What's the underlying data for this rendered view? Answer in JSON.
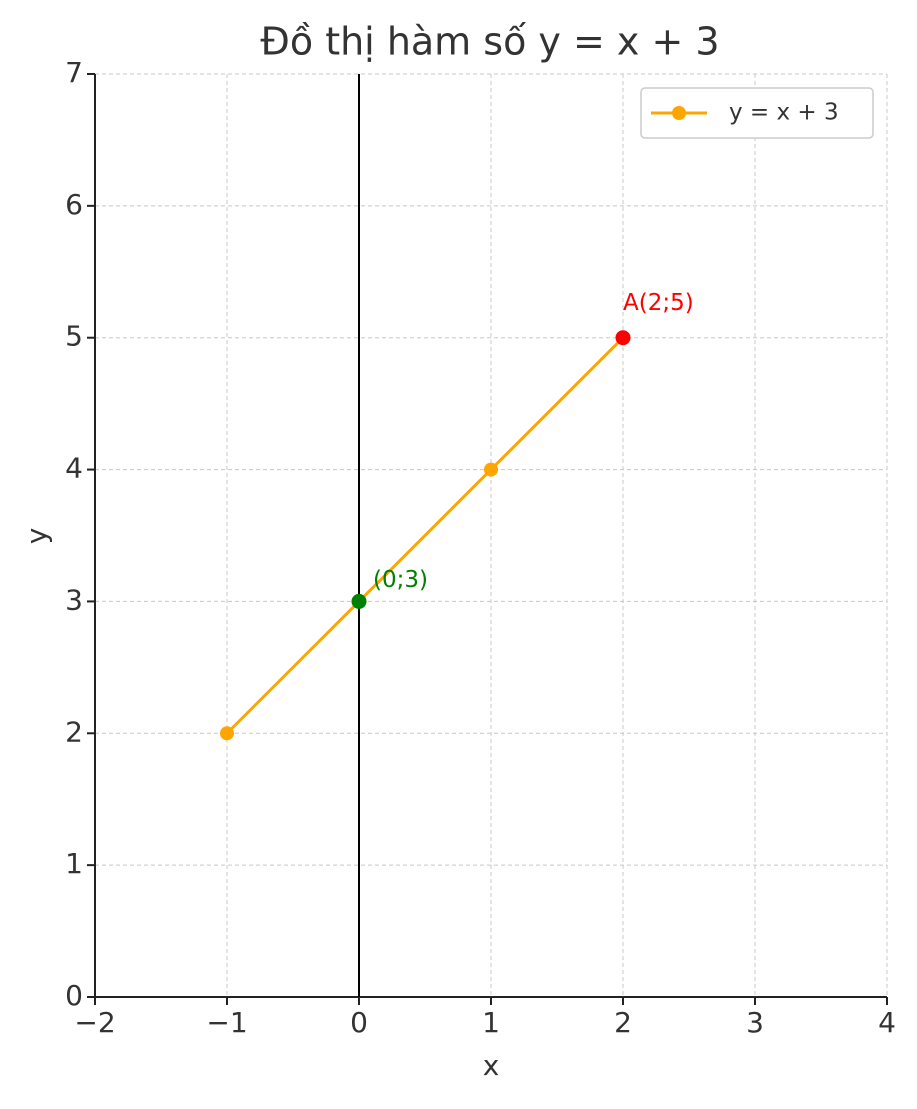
{
  "chart_data": {
    "type": "line",
    "title": "Đồ thị hàm số y = x + 3",
    "x_label": "x",
    "y_label": "y",
    "x": [
      -1,
      0,
      1,
      2
    ],
    "series": [
      {
        "name": "y = x + 3",
        "color": "#ffa500",
        "values": [
          2,
          3,
          4,
          5
        ]
      }
    ],
    "annotations": [
      {
        "text": "(0;3)",
        "x": 0,
        "y": 3,
        "color": "#008000"
      },
      {
        "text": "A(2;5)",
        "x": 2,
        "y": 5,
        "color": "#ff0000"
      }
    ],
    "vlines": [
      {
        "x": 0,
        "color": "#000000"
      }
    ],
    "xlim": [
      -2,
      4
    ],
    "ylim": [
      0,
      7
    ],
    "xticks": [
      {
        "value": -2,
        "label": "−2"
      },
      {
        "value": -1,
        "label": "−1"
      },
      0,
      1,
      2,
      3,
      4
    ],
    "yticks": [
      0,
      1,
      2,
      3,
      4,
      5,
      6,
      7
    ],
    "grid": true,
    "legend": "upper right"
  }
}
